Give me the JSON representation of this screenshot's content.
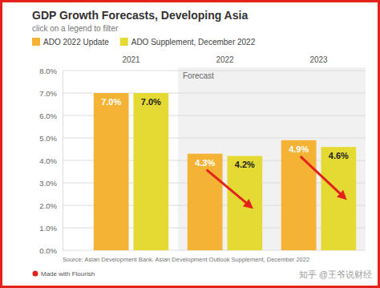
{
  "chart_data": {
    "type": "bar",
    "title": "GDP Growth Forecasts, Developing Asia",
    "subtitle": "click on a legend to filter",
    "categories": [
      "2021",
      "2022",
      "2023"
    ],
    "series": [
      {
        "name": "ADO 2022 Update",
        "color": "#f5b335",
        "values": [
          7.0,
          4.3,
          4.9
        ],
        "value_labels": [
          "7.0%",
          "4.3%",
          "4.9%"
        ]
      },
      {
        "name": "ADO Supplement, December 2022",
        "color": "#e5da33",
        "values": [
          7.0,
          4.2,
          4.6
        ],
        "value_labels": [
          "7.0%",
          "4.2%",
          "4.6%"
        ]
      }
    ],
    "ylim": [
      0,
      8
    ],
    "yticks": [
      {
        "value": 0,
        "label": "0.0%"
      },
      {
        "value": 1,
        "label": "1.0%"
      },
      {
        "value": 2,
        "label": "2.0%"
      },
      {
        "value": 3,
        "label": "3.0%"
      },
      {
        "value": 4,
        "label": "4.0%"
      },
      {
        "value": 5,
        "label": "5.0%"
      },
      {
        "value": 6,
        "label": "6.0%"
      },
      {
        "value": 7,
        "label": "7.0%"
      },
      {
        "value": 8,
        "label": "8.0%"
      }
    ],
    "grid": true,
    "legend": "top",
    "data_labels": true,
    "annotations": [
      {
        "text": "Forecast",
        "categories": [
          "2022",
          "2023"
        ]
      }
    ],
    "source": "Source: Asian Development Bank. Asian Development Outlook Supplement, December 2022",
    "credit": "Made with Flourish",
    "watermark": "知乎 @王爷说财经"
  }
}
